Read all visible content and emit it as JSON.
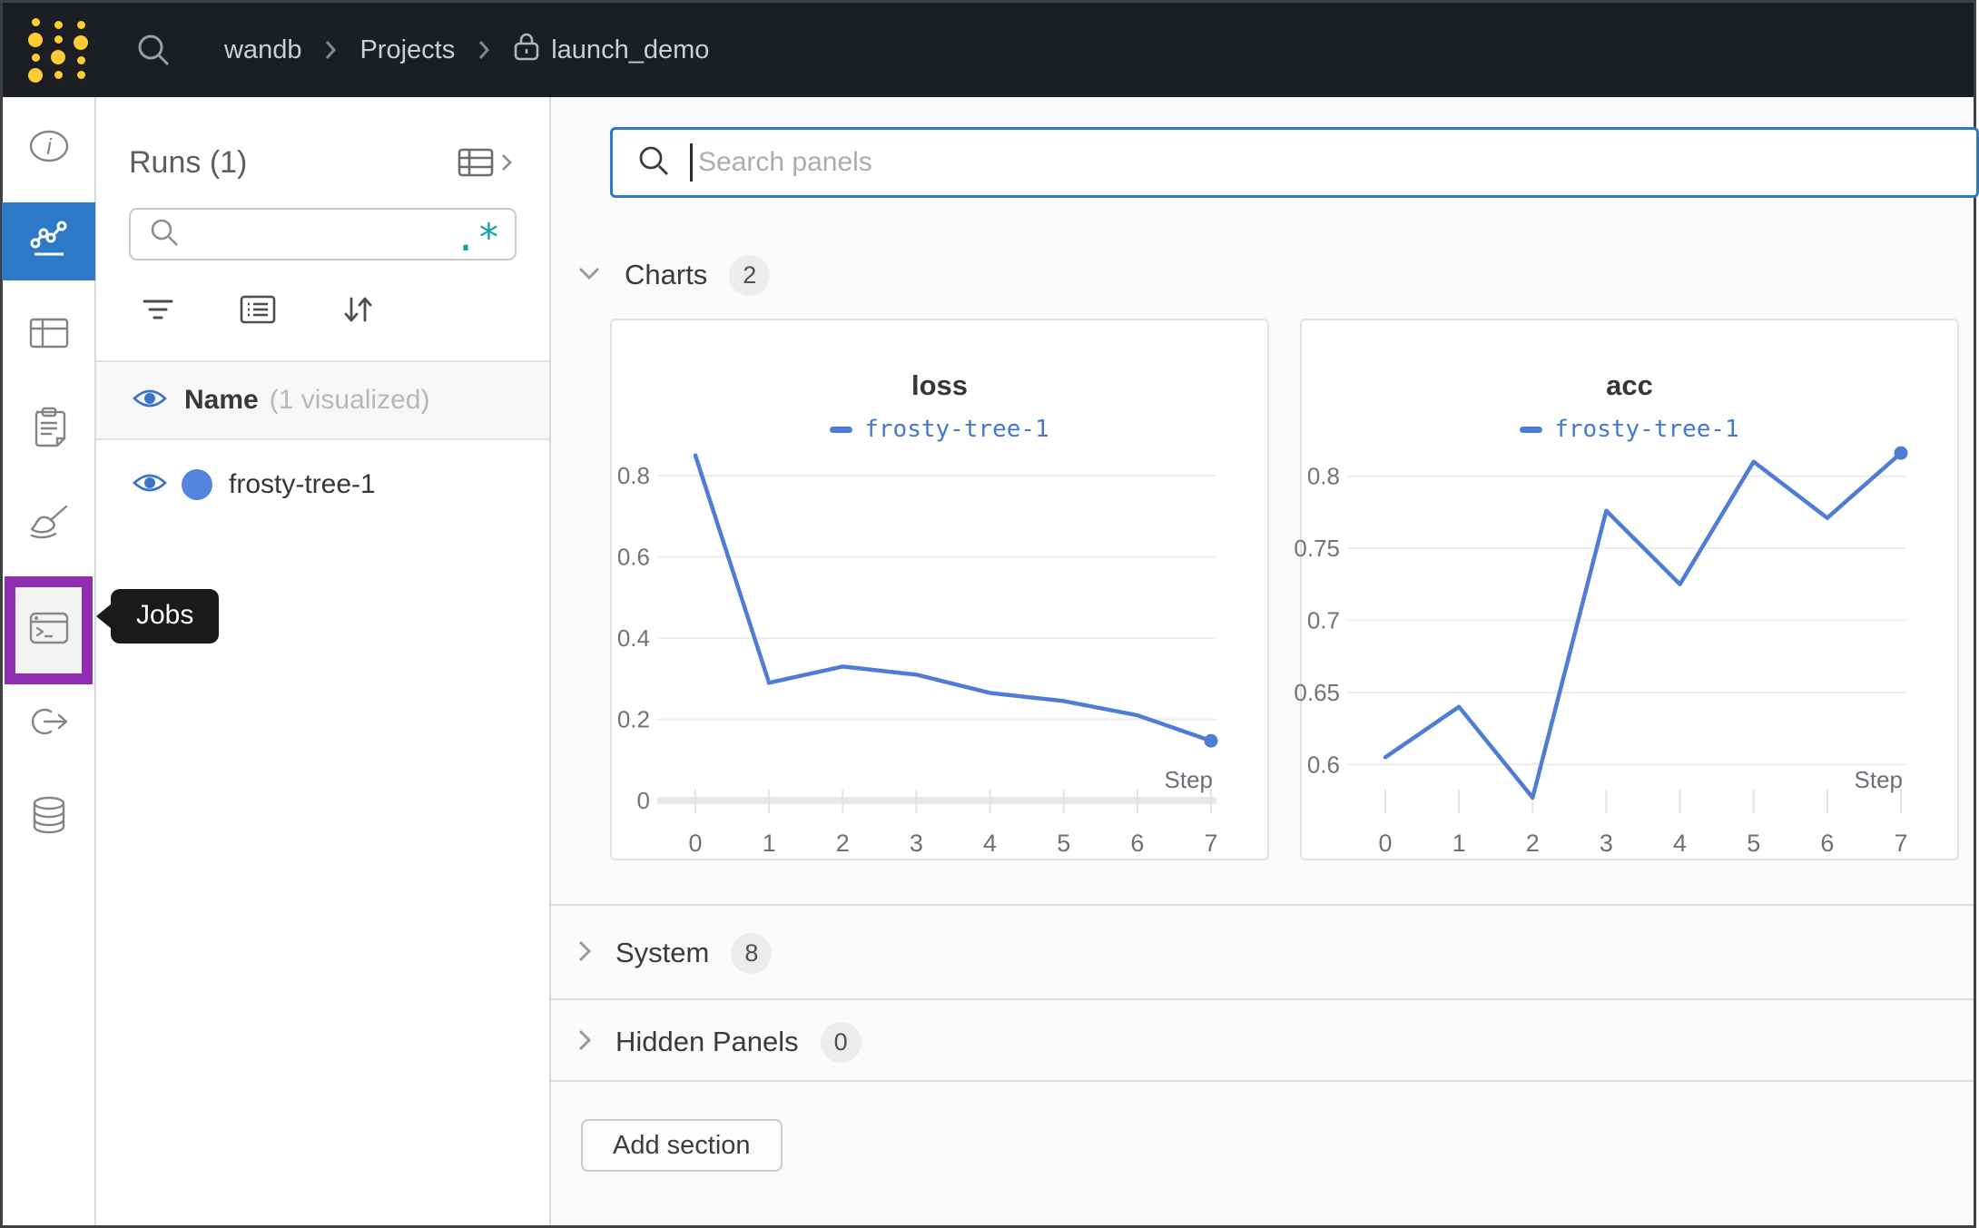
{
  "navbar": {
    "breadcrumb": {
      "team": "wandb",
      "section": "Projects",
      "project": "launch_demo"
    }
  },
  "sidebar": {
    "items": [
      {
        "id": "overview",
        "icon": "info-icon",
        "selected": false
      },
      {
        "id": "workspace",
        "icon": "line-chart-icon",
        "selected": true
      },
      {
        "id": "table",
        "icon": "table-icon",
        "selected": false
      },
      {
        "id": "reports",
        "icon": "clipboard-icon",
        "selected": false
      },
      {
        "id": "sweeps",
        "icon": "broom-icon",
        "selected": false
      },
      {
        "id": "jobs",
        "icon": "terminal-icon",
        "selected": false,
        "highlighted": true
      },
      {
        "id": "automations",
        "icon": "link-arrow-icon",
        "selected": false
      },
      {
        "id": "artifacts",
        "icon": "database-icon",
        "selected": false
      }
    ],
    "tooltip": "Jobs"
  },
  "runs_panel": {
    "title": "Runs (1)",
    "search_value": "",
    "regex_icon": ".*",
    "header": {
      "name_label": "Name",
      "visualized_label": "(1 visualized)"
    },
    "runs": [
      {
        "name": "frosty-tree-1",
        "color": "#5586dd",
        "visible": true
      }
    ]
  },
  "main": {
    "search": {
      "placeholder": "Search panels"
    },
    "sections": [
      {
        "label": "Charts",
        "count": "2",
        "expanded": true
      },
      {
        "label": "System",
        "count": "8",
        "expanded": false
      },
      {
        "label": "Hidden Panels",
        "count": "0",
        "expanded": false
      }
    ],
    "add_section_label": "Add section"
  },
  "chart_data": [
    {
      "type": "line",
      "title": "loss",
      "legend": "frosty-tree-1",
      "x": [
        0,
        1,
        2,
        3,
        4,
        5,
        6,
        7
      ],
      "values": [
        0.85,
        0.29,
        0.33,
        0.31,
        0.265,
        0.245,
        0.21,
        0.147
      ],
      "xlabel": "Step",
      "y_ticks": [
        0,
        0.2,
        0.4,
        0.6,
        0.8
      ],
      "ylim": [
        0,
        0.863
      ],
      "grid": true,
      "legend_position": "top",
      "line_color": "#4f7dd5",
      "show_zero_axis": true,
      "end_marker": true
    },
    {
      "type": "line",
      "title": "acc",
      "legend": "frosty-tree-1",
      "x": [
        0,
        1,
        2,
        3,
        4,
        5,
        6,
        7
      ],
      "values": [
        0.605,
        0.64,
        0.577,
        0.776,
        0.725,
        0.81,
        0.771,
        0.816
      ],
      "xlabel": "Step",
      "y_ticks": [
        0.6,
        0.65,
        0.7,
        0.75,
        0.8
      ],
      "ylim": [
        0.575,
        0.818
      ],
      "grid": true,
      "legend_position": "top",
      "line_color": "#4f7dd5",
      "show_zero_axis": false,
      "end_marker": true
    }
  ],
  "colors": {
    "accent_blue": "#2e78c8",
    "run_blue": "#4f7dd5",
    "highlight_purple": "#8f2eb2",
    "logo_yellow": "#ffcc33",
    "regex_teal": "#12a2a6"
  }
}
